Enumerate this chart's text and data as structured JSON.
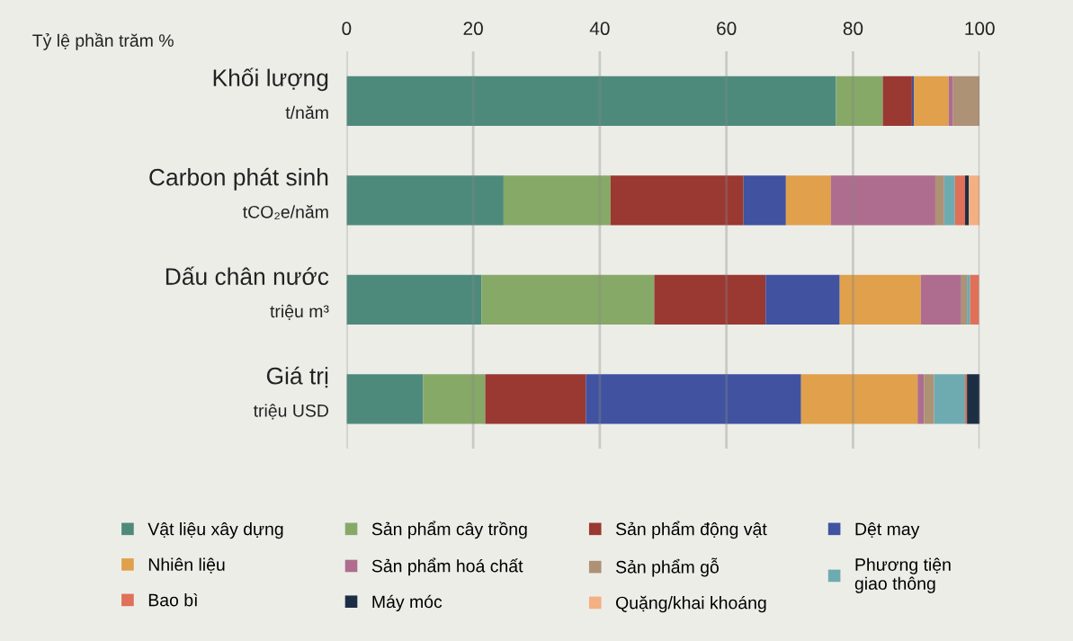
{
  "chart_data": {
    "type": "bar",
    "orientation": "horizontal",
    "stacked": true,
    "xlabel": "Tỷ lệ phần trăm %",
    "categories": [
      "Khối lượng\nt/năm",
      "Carbon phát sinh\ntCO₂e/năm",
      "Dấu chân nước\ntriệu m³",
      "Giá trị\ntriệu USD"
    ],
    "xlim": [
      0,
      100
    ],
    "xticks": [
      0,
      20,
      40,
      60,
      80,
      100
    ],
    "grid": "x",
    "legend": "bottom",
    "series": [
      {
        "name": "Vật liệu xây dựng",
        "color": "#4e8a7c",
        "values": [
          77.3,
          24.8,
          21.3,
          12.1
        ]
      },
      {
        "name": "Sản phẩm cây trồng",
        "color": "#86a968",
        "values": [
          7.4,
          16.9,
          27.3,
          9.8
        ]
      },
      {
        "name": "Sản phẩm động vật",
        "color": "#9a3832",
        "values": [
          4.6,
          21.0,
          17.6,
          15.9
        ]
      },
      {
        "name": "Dệt may",
        "color": "#4052a0",
        "values": [
          0.3,
          6.7,
          11.7,
          34.0
        ]
      },
      {
        "name": "Nhiên liệu",
        "color": "#e0a04c",
        "values": [
          5.5,
          7.1,
          12.8,
          18.4
        ]
      },
      {
        "name": "Sản phẩm hoá chất",
        "color": "#ae6d8e",
        "values": [
          0.7,
          16.5,
          6.4,
          1.0
        ]
      },
      {
        "name": "Sản phẩm gỗ",
        "color": "#ad9275",
        "values": [
          4.2,
          1.4,
          0.9,
          1.6
        ]
      },
      {
        "name": "Phương tiện\ngiao thông",
        "color": "#6eabb1",
        "values": [
          0,
          1.7,
          0.5,
          4.9
        ]
      },
      {
        "name": "Bao bì",
        "color": "#e07058",
        "values": [
          null,
          1.6,
          1.4,
          0.3
        ]
      },
      {
        "name": "Máy móc",
        "color": "#1c2e44",
        "values": [
          0,
          0.6,
          0,
          2.1
        ]
      },
      {
        "name": "Quặng/khai khoáng",
        "color": "#f3b083",
        "values": [
          0,
          1.9,
          null,
          0
        ]
      }
    ]
  }
}
